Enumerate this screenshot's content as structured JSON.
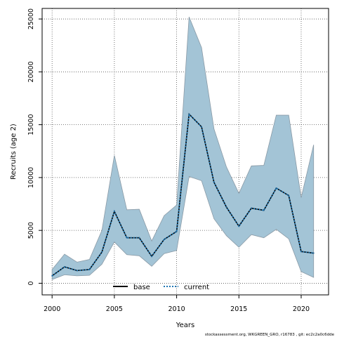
{
  "chart_data": {
    "type": "area",
    "xlabel": "Years",
    "ylabel": "Recruits (age 2)",
    "xlim": [
      1999.2,
      2022.2
    ],
    "ylim": [
      -1100,
      26000
    ],
    "x_ticks": [
      2000,
      2005,
      2010,
      2015,
      2020
    ],
    "y_ticks": [
      0,
      5000,
      10000,
      15000,
      20000,
      25000
    ],
    "grid": true,
    "legend_position": "bottom-center",
    "x": [
      2000,
      2001,
      2002,
      2003,
      2004,
      2005,
      2006,
      2007,
      2008,
      2009,
      2010,
      2011,
      2012,
      2013,
      2014,
      2015,
      2016,
      2017,
      2018,
      2019,
      2020,
      2021
    ],
    "band": {
      "color": "#a3c4d6",
      "edge_color": "#8a9aa6",
      "upper": [
        1300,
        2750,
        2000,
        2250,
        5000,
        12100,
        6950,
        7000,
        4000,
        6400,
        7400,
        25200,
        22300,
        14600,
        11000,
        8500,
        11100,
        11150,
        15900,
        15900,
        8100,
        13100
      ],
      "lower": [
        350,
        800,
        700,
        750,
        1800,
        3900,
        2700,
        2600,
        1600,
        2800,
        3100,
        10100,
        9700,
        6100,
        4500,
        3400,
        4600,
        4300,
        5100,
        4200,
        1100,
        550
      ]
    },
    "series": [
      {
        "name": "base",
        "color": "#000000",
        "dash": "solid",
        "values": [
          700,
          1550,
          1200,
          1300,
          2950,
          6800,
          4300,
          4300,
          2550,
          4150,
          4900,
          16000,
          14800,
          9550,
          7200,
          5400,
          7100,
          6900,
          9000,
          8300,
          3000,
          2850
        ]
      },
      {
        "name": "current",
        "color": "#1f77b4",
        "dash": "dotted",
        "values": [
          700,
          1550,
          1200,
          1300,
          2950,
          6800,
          4300,
          4300,
          2550,
          4150,
          4900,
          16000,
          14800,
          9550,
          7200,
          5400,
          7100,
          6900,
          9000,
          8300,
          3000,
          2850
        ]
      }
    ],
    "footer": "stockassessment.org, WKGREEN_GRO, r16783 , git: ec2c2a0c6dde"
  }
}
